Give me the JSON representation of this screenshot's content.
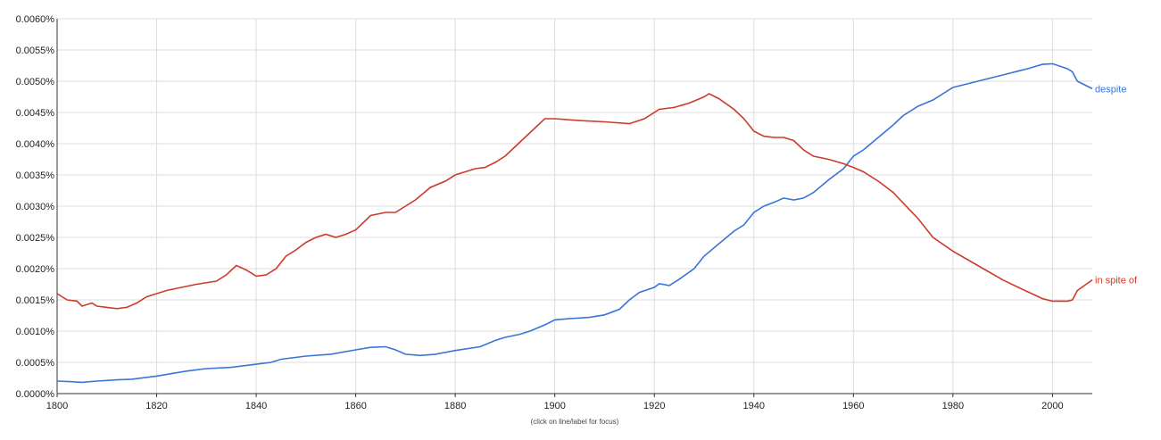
{
  "chart_data": {
    "type": "line",
    "title": "",
    "xlabel": "",
    "ylabel": "",
    "xlim": [
      1800,
      2008
    ],
    "ylim": [
      0,
      0.006
    ],
    "grid": true,
    "x_ticks": [
      1800,
      1820,
      1840,
      1860,
      1880,
      1900,
      1920,
      1940,
      1960,
      1980,
      2000
    ],
    "x_tick_labels": [
      "1800",
      "1820",
      "1840",
      "1860",
      "1880",
      "1900",
      "1920",
      "1940",
      "1960",
      "1980",
      "2000"
    ],
    "y_ticks": [
      0,
      0.0005,
      0.001,
      0.0015,
      0.002,
      0.0025,
      0.003,
      0.0035,
      0.004,
      0.0045,
      0.005,
      0.0055,
      0.006
    ],
    "y_tick_labels": [
      "0.0000%",
      "0.0005%",
      "0.0010%",
      "0.0015%",
      "0.0020%",
      "0.0025%",
      "0.0030%",
      "0.0035%",
      "0.0040%",
      "0.0045%",
      "0.0050%",
      "0.0055%",
      "0.0060%"
    ],
    "footer_note": "(click on line/label for focus)",
    "series": [
      {
        "name": "despite",
        "color": "#3875d7",
        "points": [
          [
            1800,
            0.0002
          ],
          [
            1803,
            0.00019
          ],
          [
            1805,
            0.00018
          ],
          [
            1808,
            0.0002
          ],
          [
            1812,
            0.00022
          ],
          [
            1815,
            0.00023
          ],
          [
            1818,
            0.00026
          ],
          [
            1820,
            0.00028
          ],
          [
            1823,
            0.00032
          ],
          [
            1826,
            0.00036
          ],
          [
            1830,
            0.0004
          ],
          [
            1835,
            0.00042
          ],
          [
            1840,
            0.00047
          ],
          [
            1843,
            0.0005
          ],
          [
            1845,
            0.00055
          ],
          [
            1850,
            0.0006
          ],
          [
            1855,
            0.00063
          ],
          [
            1860,
            0.0007
          ],
          [
            1863,
            0.00074
          ],
          [
            1866,
            0.00075
          ],
          [
            1868,
            0.0007
          ],
          [
            1870,
            0.00063
          ],
          [
            1873,
            0.00061
          ],
          [
            1876,
            0.00063
          ],
          [
            1880,
            0.00069
          ],
          [
            1885,
            0.00075
          ],
          [
            1888,
            0.00085
          ],
          [
            1890,
            0.0009
          ],
          [
            1893,
            0.00095
          ],
          [
            1895,
            0.001
          ],
          [
            1898,
            0.0011
          ],
          [
            1900,
            0.00118
          ],
          [
            1903,
            0.0012
          ],
          [
            1907,
            0.00122
          ],
          [
            1910,
            0.00126
          ],
          [
            1913,
            0.00135
          ],
          [
            1915,
            0.0015
          ],
          [
            1917,
            0.00162
          ],
          [
            1920,
            0.0017
          ],
          [
            1921,
            0.00176
          ],
          [
            1923,
            0.00173
          ],
          [
            1925,
            0.00183
          ],
          [
            1928,
            0.002
          ],
          [
            1930,
            0.0022
          ],
          [
            1933,
            0.0024
          ],
          [
            1936,
            0.0026
          ],
          [
            1938,
            0.0027
          ],
          [
            1940,
            0.0029
          ],
          [
            1942,
            0.003
          ],
          [
            1944,
            0.00306
          ],
          [
            1946,
            0.00313
          ],
          [
            1948,
            0.0031
          ],
          [
            1950,
            0.00313
          ],
          [
            1952,
            0.00322
          ],
          [
            1955,
            0.00342
          ],
          [
            1958,
            0.0036
          ],
          [
            1960,
            0.0038
          ],
          [
            1962,
            0.0039
          ],
          [
            1965,
            0.0041
          ],
          [
            1968,
            0.0043
          ],
          [
            1970,
            0.00445
          ],
          [
            1973,
            0.0046
          ],
          [
            1976,
            0.0047
          ],
          [
            1980,
            0.0049
          ],
          [
            1985,
            0.005
          ],
          [
            1990,
            0.0051
          ],
          [
            1995,
            0.0052
          ],
          [
            1998,
            0.00527
          ],
          [
            2000,
            0.00528
          ],
          [
            2003,
            0.0052
          ],
          [
            2004,
            0.00515
          ],
          [
            2005,
            0.005
          ],
          [
            2008,
            0.00488
          ]
        ]
      },
      {
        "name": "in spite of",
        "color": "#cc3b2a",
        "points": [
          [
            1800,
            0.0016
          ],
          [
            1802,
            0.0015
          ],
          [
            1804,
            0.00148
          ],
          [
            1805,
            0.0014
          ],
          [
            1807,
            0.00145
          ],
          [
            1808,
            0.0014
          ],
          [
            1810,
            0.00138
          ],
          [
            1812,
            0.00136
          ],
          [
            1814,
            0.00138
          ],
          [
            1816,
            0.00145
          ],
          [
            1818,
            0.00155
          ],
          [
            1820,
            0.0016
          ],
          [
            1822,
            0.00165
          ],
          [
            1825,
            0.0017
          ],
          [
            1828,
            0.00175
          ],
          [
            1832,
            0.0018
          ],
          [
            1834,
            0.0019
          ],
          [
            1836,
            0.00205
          ],
          [
            1838,
            0.00198
          ],
          [
            1840,
            0.00188
          ],
          [
            1842,
            0.0019
          ],
          [
            1844,
            0.002
          ],
          [
            1846,
            0.0022
          ],
          [
            1848,
            0.0023
          ],
          [
            1850,
            0.00242
          ],
          [
            1852,
            0.0025
          ],
          [
            1854,
            0.00255
          ],
          [
            1856,
            0.0025
          ],
          [
            1858,
            0.00255
          ],
          [
            1860,
            0.00262
          ],
          [
            1863,
            0.00285
          ],
          [
            1866,
            0.0029
          ],
          [
            1868,
            0.0029
          ],
          [
            1870,
            0.003
          ],
          [
            1872,
            0.0031
          ],
          [
            1875,
            0.0033
          ],
          [
            1878,
            0.0034
          ],
          [
            1880,
            0.0035
          ],
          [
            1882,
            0.00355
          ],
          [
            1884,
            0.0036
          ],
          [
            1886,
            0.00362
          ],
          [
            1888,
            0.0037
          ],
          [
            1890,
            0.0038
          ],
          [
            1892,
            0.00395
          ],
          [
            1894,
            0.0041
          ],
          [
            1896,
            0.00425
          ],
          [
            1898,
            0.0044
          ],
          [
            1900,
            0.0044
          ],
          [
            1905,
            0.00437
          ],
          [
            1910,
            0.00435
          ],
          [
            1915,
            0.00432
          ],
          [
            1918,
            0.0044
          ],
          [
            1921,
            0.00455
          ],
          [
            1924,
            0.00458
          ],
          [
            1927,
            0.00465
          ],
          [
            1930,
            0.00475
          ],
          [
            1931,
            0.0048
          ],
          [
            1933,
            0.00472
          ],
          [
            1936,
            0.00455
          ],
          [
            1938,
            0.0044
          ],
          [
            1940,
            0.0042
          ],
          [
            1942,
            0.00412
          ],
          [
            1944,
            0.0041
          ],
          [
            1946,
            0.0041
          ],
          [
            1948,
            0.00405
          ],
          [
            1950,
            0.0039
          ],
          [
            1952,
            0.0038
          ],
          [
            1955,
            0.00375
          ],
          [
            1958,
            0.00368
          ],
          [
            1960,
            0.00362
          ],
          [
            1962,
            0.00355
          ],
          [
            1965,
            0.0034
          ],
          [
            1968,
            0.00322
          ],
          [
            1970,
            0.00305
          ],
          [
            1973,
            0.0028
          ],
          [
            1976,
            0.0025
          ],
          [
            1980,
            0.00228
          ],
          [
            1985,
            0.00205
          ],
          [
            1990,
            0.00182
          ],
          [
            1995,
            0.00163
          ],
          [
            1998,
            0.00152
          ],
          [
            2000,
            0.00148
          ],
          [
            2003,
            0.00148
          ],
          [
            2004,
            0.0015
          ],
          [
            2005,
            0.00165
          ],
          [
            2008,
            0.00182
          ]
        ]
      }
    ]
  }
}
